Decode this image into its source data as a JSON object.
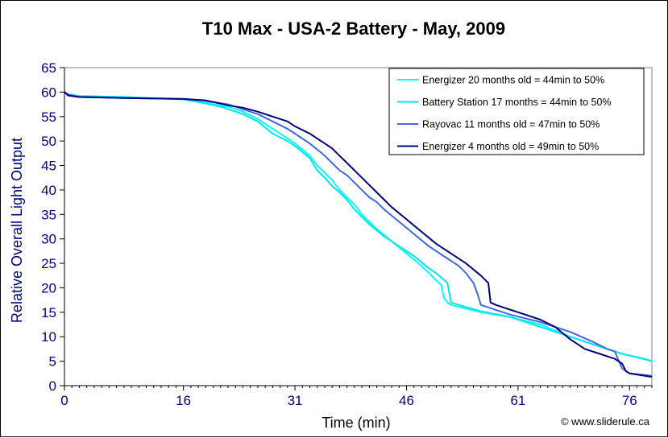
{
  "chart_data": {
    "type": "line",
    "title": "T10 Max - USA-2 Battery - May, 2009",
    "xlabel": "Time (min)",
    "ylabel": "Relative Overall Light Output",
    "credit": "© www.sliderule.ca",
    "xlim": [
      0,
      79
    ],
    "ylim": [
      0,
      65
    ],
    "x_ticks": [
      0,
      16,
      31,
      46,
      61,
      76
    ],
    "y_ticks": [
      0,
      5,
      10,
      15,
      20,
      25,
      30,
      35,
      40,
      45,
      50,
      55,
      60,
      65
    ],
    "grid": false,
    "legend_position": "top-right",
    "series": [
      {
        "name": "Energizer 20 months old = 44min to 50%",
        "color": "#00FFFF",
        "points": [
          [
            0,
            60
          ],
          [
            0.5,
            59.5
          ],
          [
            2,
            59.2
          ],
          [
            8,
            59
          ],
          [
            16,
            58.6
          ],
          [
            19,
            58
          ],
          [
            20,
            57.5
          ],
          [
            22,
            57
          ],
          [
            24,
            56
          ],
          [
            26,
            54.5
          ],
          [
            28,
            52.5
          ],
          [
            30,
            50.5
          ],
          [
            31,
            49.5
          ],
          [
            33,
            47
          ],
          [
            34,
            45
          ],
          [
            35,
            43.5
          ],
          [
            36,
            42
          ],
          [
            37,
            40
          ],
          [
            38,
            38.5
          ],
          [
            39,
            37
          ],
          [
            40,
            35
          ],
          [
            41,
            33.5
          ],
          [
            42,
            32
          ],
          [
            44,
            29.5
          ],
          [
            46,
            27
          ],
          [
            48,
            24.5
          ],
          [
            49,
            23
          ],
          [
            50,
            21.5
          ],
          [
            50.7,
            20.5
          ],
          [
            51,
            18
          ],
          [
            51.5,
            17
          ],
          [
            52,
            16.5
          ],
          [
            56,
            15
          ],
          [
            60,
            14
          ],
          [
            64,
            12.5
          ],
          [
            68,
            10
          ],
          [
            72,
            8
          ],
          [
            75,
            6.5
          ],
          [
            78,
            5.5
          ],
          [
            79,
            5
          ]
        ]
      },
      {
        "name": "Battery Station 17 months = 44min to 50%",
        "color": "#00E5EE",
        "points": [
          [
            0,
            60
          ],
          [
            0.5,
            59.5
          ],
          [
            2,
            59.2
          ],
          [
            8,
            59
          ],
          [
            16,
            58.5
          ],
          [
            19,
            57.7
          ],
          [
            21,
            57
          ],
          [
            24,
            55.5
          ],
          [
            26,
            54
          ],
          [
            28,
            51.5
          ],
          [
            30,
            50
          ],
          [
            31,
            49
          ],
          [
            33,
            46.5
          ],
          [
            34,
            44
          ],
          [
            35,
            42.5
          ],
          [
            36,
            40.8
          ],
          [
            37,
            39.5
          ],
          [
            38,
            38
          ],
          [
            39,
            36
          ],
          [
            40,
            34.5
          ],
          [
            41,
            33
          ],
          [
            43,
            30.5
          ],
          [
            45,
            28.5
          ],
          [
            47,
            26.5
          ],
          [
            49,
            24
          ],
          [
            50,
            23
          ],
          [
            51.5,
            21
          ],
          [
            52,
            17
          ],
          [
            53,
            16.5
          ],
          [
            56,
            15.2
          ],
          [
            60,
            14
          ],
          [
            64,
            12
          ],
          [
            68,
            10
          ],
          [
            72,
            8
          ],
          [
            75,
            6.5
          ],
          [
            77,
            5.8
          ],
          [
            79,
            5
          ]
        ]
      },
      {
        "name": "Rayovac 11 months old = 47min to 50%",
        "color": "#4169E1",
        "points": [
          [
            0,
            60
          ],
          [
            0.5,
            59.5
          ],
          [
            2,
            59
          ],
          [
            8,
            58.8
          ],
          [
            16,
            58.6
          ],
          [
            19,
            58.2
          ],
          [
            22,
            57.5
          ],
          [
            24,
            56.5
          ],
          [
            26,
            55.5
          ],
          [
            28,
            54
          ],
          [
            30,
            52.5
          ],
          [
            31,
            51.5
          ],
          [
            33,
            49.5
          ],
          [
            35,
            47
          ],
          [
            36,
            45.5
          ],
          [
            37,
            44
          ],
          [
            38,
            43
          ],
          [
            39,
            41.5
          ],
          [
            40,
            40
          ],
          [
            41,
            38.5
          ],
          [
            42,
            37.5
          ],
          [
            43,
            36
          ],
          [
            45,
            33.5
          ],
          [
            47,
            31
          ],
          [
            49,
            28.5
          ],
          [
            51,
            26.5
          ],
          [
            53,
            24.5
          ],
          [
            54,
            23
          ],
          [
            55,
            21
          ],
          [
            55.5,
            19
          ],
          [
            56,
            16.5
          ],
          [
            57,
            16
          ],
          [
            60,
            14.5
          ],
          [
            64,
            13
          ],
          [
            68,
            11
          ],
          [
            71,
            9
          ],
          [
            73,
            7.5
          ],
          [
            74,
            7
          ],
          [
            75,
            3.5
          ],
          [
            76,
            2.5
          ],
          [
            79,
            2
          ]
        ]
      },
      {
        "name": "Energizer 4 months old = 49min to 50%",
        "color": "#000080",
        "points": [
          [
            0,
            60
          ],
          [
            0.5,
            59.3
          ],
          [
            2,
            59
          ],
          [
            8,
            58.8
          ],
          [
            16,
            58.6
          ],
          [
            19,
            58.3
          ],
          [
            22,
            57.3
          ],
          [
            24,
            56.8
          ],
          [
            26,
            56
          ],
          [
            28,
            55
          ],
          [
            30,
            54
          ],
          [
            31,
            53
          ],
          [
            33,
            51.5
          ],
          [
            35,
            49.5
          ],
          [
            36,
            48.5
          ],
          [
            37,
            47
          ],
          [
            38,
            45.5
          ],
          [
            39,
            44
          ],
          [
            40,
            42.5
          ],
          [
            41,
            41
          ],
          [
            42,
            39.5
          ],
          [
            44,
            36.5
          ],
          [
            46,
            34
          ],
          [
            48,
            31.5
          ],
          [
            50,
            29
          ],
          [
            52,
            27
          ],
          [
            54,
            25
          ],
          [
            56,
            22.5
          ],
          [
            57,
            21
          ],
          [
            57.3,
            17
          ],
          [
            58,
            16.5
          ],
          [
            61,
            15
          ],
          [
            64,
            13.5
          ],
          [
            66,
            12
          ],
          [
            68,
            9.5
          ],
          [
            70,
            7.5
          ],
          [
            72,
            6.5
          ],
          [
            74,
            5.5
          ],
          [
            75,
            4.5
          ],
          [
            75.5,
            3
          ],
          [
            76,
            2.5
          ],
          [
            79,
            1.8
          ]
        ]
      }
    ]
  }
}
